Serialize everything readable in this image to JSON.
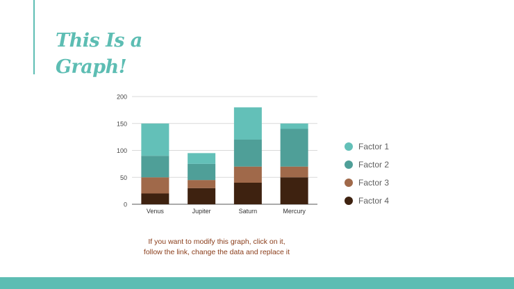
{
  "slide": {
    "title": "This Is a Graph!",
    "caption_line1": "If you want to modify this graph, click on it,",
    "caption_line2": "follow the link, change the data and replace it"
  },
  "colors": {
    "accent": "#5dbdb3",
    "factor1": "#63c0b8",
    "factor2": "#4f9f98",
    "factor3": "#a0694a",
    "factor4": "#3e2210"
  },
  "chart_data": {
    "type": "bar",
    "stacked": true,
    "categories": [
      "Venus",
      "Jupiter",
      "Saturn",
      "Mercury"
    ],
    "series": [
      {
        "name": "Factor 4",
        "values": [
          20,
          30,
          40,
          50
        ],
        "color": "#3e2210"
      },
      {
        "name": "Factor 3",
        "values": [
          30,
          15,
          30,
          20
        ],
        "color": "#a0694a"
      },
      {
        "name": "Factor 2",
        "values": [
          40,
          30,
          50,
          70
        ],
        "color": "#4f9f98"
      },
      {
        "name": "Factor 1",
        "values": [
          60,
          20,
          60,
          10
        ],
        "color": "#63c0b8"
      }
    ],
    "ylim": [
      0,
      200
    ],
    "yticks": [
      "0",
      "50",
      "100",
      "150",
      "200"
    ],
    "grid": true,
    "legend_position": "right",
    "legend_order": [
      "Factor 1",
      "Factor 2",
      "Factor 3",
      "Factor 4"
    ]
  }
}
